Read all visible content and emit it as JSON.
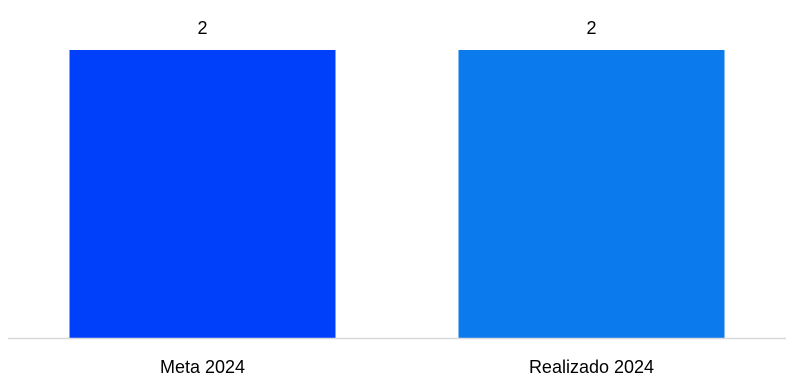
{
  "chart_data": {
    "type": "bar",
    "title": "",
    "xlabel": "",
    "ylabel": "",
    "categories": [
      "Meta 2024",
      "Realizado 2024"
    ],
    "values": [
      2,
      2
    ],
    "data_labels": [
      "2",
      "2"
    ],
    "colors": [
      "#0040FA",
      "#0A7AEC"
    ],
    "axis_color": "#D9D9D9",
    "ylim": [
      0,
      2
    ],
    "grid": false,
    "legend": "none"
  }
}
